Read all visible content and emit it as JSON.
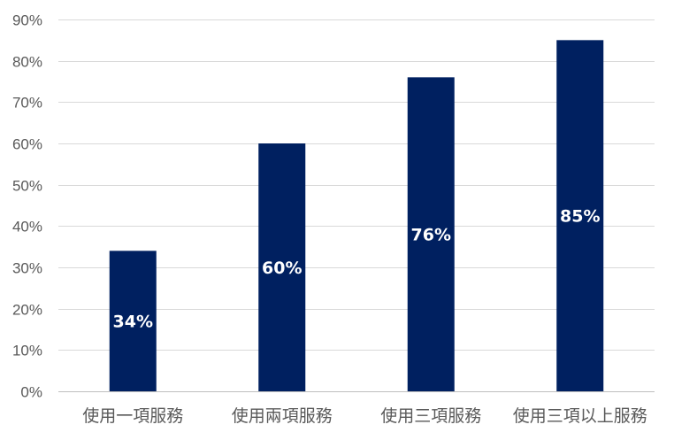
{
  "chart_data": {
    "type": "bar",
    "categories": [
      "使用一項服務",
      "使用兩項服務",
      "使用三項服務",
      "使用三項以上服務"
    ],
    "values": [
      34,
      60,
      76,
      85
    ],
    "data_labels": [
      "34%",
      "60%",
      "76%",
      "85%"
    ],
    "title": "",
    "xlabel": "",
    "ylabel": "",
    "ylim": [
      0,
      90
    ],
    "yticks": [
      0,
      10,
      20,
      30,
      40,
      50,
      60,
      70,
      80,
      90
    ],
    "ytick_labels": [
      "0%",
      "10%",
      "20%",
      "30%",
      "40%",
      "50%",
      "60%",
      "70%",
      "80%",
      "90%"
    ],
    "grid": true,
    "legend": "none",
    "bar_color": "#002060",
    "data_label_color": "#ffffff"
  }
}
